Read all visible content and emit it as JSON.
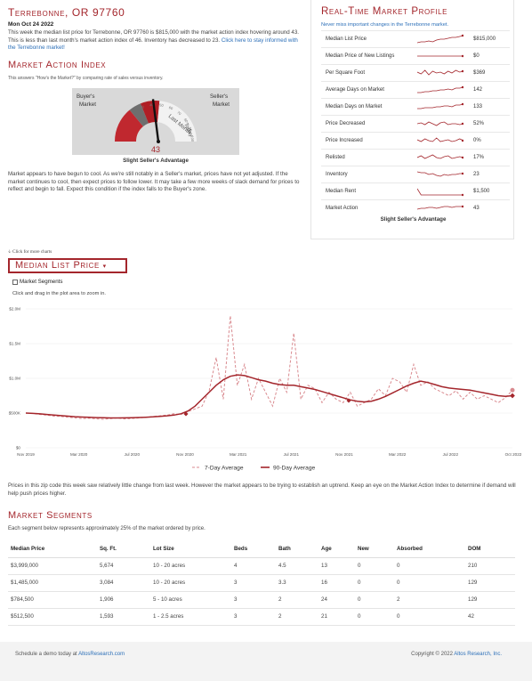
{
  "header": {
    "title": "Terrebonne, OR 97760",
    "date": "Mon Oct 24 2022",
    "intro": "This week the median list price for Terrebonne, OR 97760 is $815,000 with the market action index hovering around 43. This is less than last month's market action index of 46. Inventory has decreased to 23.",
    "intro_link": "Click here to stay informed with the Terrebonne market!"
  },
  "market_action": {
    "title": "Market Action Index",
    "subtitle": "This answers \"How's the Market?\" by comparing rate of sales versus inventory.",
    "buyers_label": "Buyer's Market",
    "sellers_label": "Seller's Market",
    "index_value": "43",
    "last_month_label": "Last Month",
    "today_label": "Today",
    "scale_ticks": [
      "30",
      "40",
      "50",
      "60",
      "70",
      "80",
      "90",
      "100"
    ],
    "index_fraction": 0.43,
    "caption": "Slight Seller's Advantage",
    "description": "Market appears to have begun to cool. As we're still notably in a Seller's market, prices have not yet adjusted. If the market continues to cool, then expect prices to follow lower. It may take a few more weeks of slack demand for prices to reflect and begin to fall. Expect this condition if the index falls to the Buyer's zone."
  },
  "realtime": {
    "title": "Real-Time Market Profile",
    "subtitle": "Never miss important changes in the Terrebonne market.",
    "rows": [
      {
        "label": "Median List Price",
        "value": "$815,000"
      },
      {
        "label": "Median Price of New Listings",
        "value": "$0"
      },
      {
        "label": "Per Square Foot",
        "value": "$369"
      },
      {
        "label": "Average Days on Market",
        "value": "142"
      },
      {
        "label": "Median Days on Market",
        "value": "133"
      },
      {
        "label": "Price Decreased",
        "value": "52%"
      },
      {
        "label": "Price Increased",
        "value": "0%"
      },
      {
        "label": "Relisted",
        "value": "17%"
      },
      {
        "label": "Inventory",
        "value": "23"
      },
      {
        "label": "Median Rent",
        "value": "$1,500"
      },
      {
        "label": "Market Action",
        "value": "43"
      }
    ],
    "footer": "Slight Seller's Advantage",
    "spark_color": "#a4262c"
  },
  "chart_controls": {
    "click_more": "Click for more charts",
    "selected_chart": "Median List Price",
    "segments_label": "Market Segments",
    "zoom_hint": "Click and drag in the plot area to zoom in."
  },
  "chart_data": {
    "type": "line",
    "x_ticks": [
      "Nov 2019",
      "Mar 2020",
      "Jul 2020",
      "Nov 2020",
      "Mar 2021",
      "Jul 2021",
      "Nov 2021",
      "Mar 2022",
      "Jul 2022",
      "Oct 2022"
    ],
    "y_ticks": [
      "$0",
      "$500K",
      "$1.0M",
      "$1.5M",
      "$2.0M"
    ],
    "ylim": [
      0,
      2000000
    ],
    "series": [
      {
        "name": "7-Day Average",
        "style": "dashed",
        "color": "#d98a8f",
        "values": [
          500000,
          495000,
          480000,
          470000,
          455000,
          450000,
          440000,
          430000,
          420000,
          425000,
          415000,
          410000,
          420000,
          430000,
          415000,
          420000,
          430000,
          440000,
          450000,
          460000,
          470000,
          490000,
          480000,
          520000,
          560000,
          600000,
          820000,
          1300000,
          700000,
          1900000,
          900000,
          1200000,
          700000,
          1000000,
          800000,
          600000,
          1000000,
          800000,
          1650000,
          700000,
          900000,
          850000,
          650000,
          800000,
          700000,
          650000,
          800000,
          600000,
          650000,
          700000,
          850000,
          750000,
          1000000,
          950000,
          800000,
          1200000,
          900000,
          950000,
          850000,
          800000,
          750000,
          820000,
          700000,
          800000,
          700000,
          750000,
          700000,
          650000,
          720000,
          830000
        ]
      },
      {
        "name": "90-Day Average",
        "style": "solid",
        "color": "#a4262c",
        "values": [
          500000,
          495000,
          488000,
          480000,
          470000,
          463000,
          455000,
          448000,
          442000,
          438000,
          435000,
          432000,
          430000,
          430000,
          431000,
          433000,
          436000,
          440000,
          445000,
          452000,
          460000,
          470000,
          490000,
          530000,
          600000,
          700000,
          800000,
          900000,
          980000,
          1030000,
          1050000,
          1040000,
          1010000,
          980000,
          960000,
          930000,
          910000,
          900000,
          900000,
          880000,
          860000,
          840000,
          810000,
          780000,
          750000,
          720000,
          690000,
          670000,
          660000,
          670000,
          700000,
          740000,
          790000,
          840000,
          890000,
          930000,
          960000,
          940000,
          910000,
          880000,
          860000,
          850000,
          840000,
          830000,
          810000,
          790000,
          770000,
          750000,
          740000,
          750000
        ]
      }
    ],
    "x_start": "Nov 2019",
    "x_end": "Oct 2022",
    "description": "Prices in this zip code this week saw relatively little change from last week. However the market appears to be trying to establish an uptrend. Keep an eye on the Market Action Index to determine if demand will help push prices higher."
  },
  "segments": {
    "title": "Market Segments",
    "subtitle": "Each segment below represents approximately 25% of the market ordered by price.",
    "columns": [
      "Median Price",
      "Sq. Ft.",
      "Lot Size",
      "Beds",
      "Bath",
      "Age",
      "New",
      "Absorbed",
      "DOM"
    ],
    "rows": [
      [
        "$3,999,000",
        "5,674",
        "10 - 20 acres",
        "4",
        "4.5",
        "13",
        "0",
        "0",
        "210"
      ],
      [
        "$1,485,000",
        "3,084",
        "10 - 20 acres",
        "3",
        "3.3",
        "16",
        "0",
        "0",
        "129"
      ],
      [
        "$784,500",
        "1,906",
        "5 - 10 acres",
        "3",
        "2",
        "24",
        "0",
        "2",
        "129"
      ],
      [
        "$512,500",
        "1,593",
        "1 - 2.5 acres",
        "3",
        "2",
        "21",
        "0",
        "0",
        "42"
      ]
    ]
  },
  "footer": {
    "left_text": "Schedule a demo today at",
    "left_link": "AltosResearch.com",
    "right_text": "Copyright © 2022",
    "right_link": "Altos Research, Inc."
  }
}
